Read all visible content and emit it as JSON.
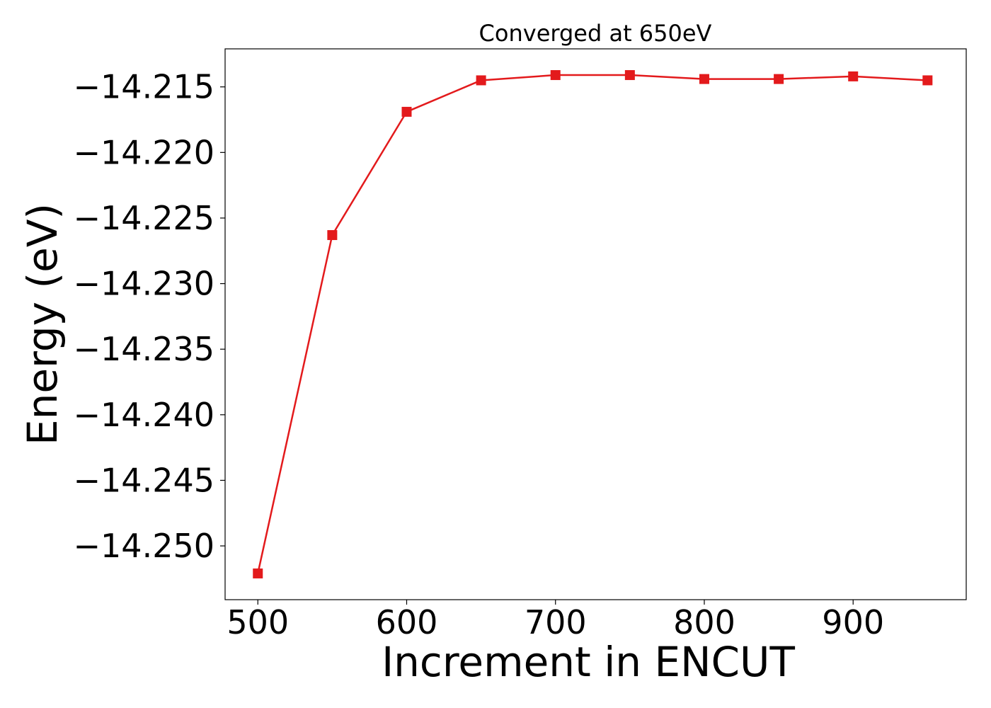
{
  "chart_data": {
    "type": "line",
    "title": "Converged at 650eV",
    "xlabel": "Increment in ENCUT",
    "ylabel": "Energy (eV)",
    "xlim": [
      478,
      976
    ],
    "ylim": [
      -14.2541,
      -14.2121
    ],
    "xticks": [
      500,
      600,
      700,
      800,
      900
    ],
    "yticks": [
      -14.215,
      -14.22,
      -14.225,
      -14.23,
      -14.235,
      -14.24,
      -14.245,
      -14.25
    ],
    "ytick_labels": [
      "−14.215",
      "−14.220",
      "−14.225",
      "−14.230",
      "−14.235",
      "−14.240",
      "−14.245",
      "−14.250"
    ],
    "grid": false,
    "series": [
      {
        "color": "#e31a1c",
        "marker": "square",
        "x": [
          500,
          550,
          600,
          650,
          700,
          750,
          800,
          850,
          900,
          950
        ],
        "y": [
          -14.2521,
          -14.2263,
          -14.2169,
          -14.2145,
          -14.2141,
          -14.2141,
          -14.2144,
          -14.2144,
          -14.2142,
          -14.2145
        ]
      }
    ]
  }
}
